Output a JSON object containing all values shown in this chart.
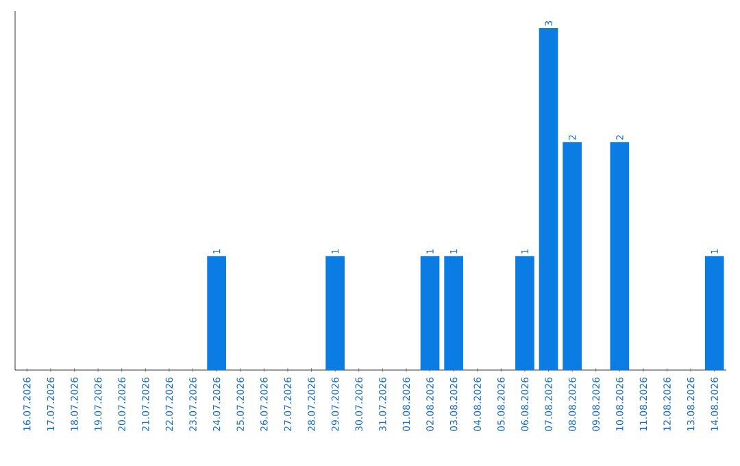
{
  "chart_data": {
    "type": "bar",
    "color": "#0a7ce3",
    "categories": [
      "16.07.2026",
      "17.07.2026",
      "18.07.2026",
      "19.07.2026",
      "20.07.2026",
      "21.07.2026",
      "22.07.2026",
      "23.07.2026",
      "24.07.2026",
      "25.07.2026",
      "26.07.2026",
      "27.07.2026",
      "28.07.2026",
      "29.07.2026",
      "30.07.2026",
      "31.07.2026",
      "01.08.2026",
      "02.08.2026",
      "03.08.2026",
      "04.08.2026",
      "05.08.2026",
      "06.08.2026",
      "07.08.2026",
      "08.08.2026",
      "09.08.2026",
      "10.08.2026",
      "11.08.2026",
      "12.08.2026",
      "13.08.2026",
      "14.08.2026"
    ],
    "values": [
      0,
      0,
      0,
      0,
      0,
      0,
      0,
      0,
      1,
      0,
      0,
      0,
      0,
      1,
      0,
      0,
      0,
      1,
      1,
      0,
      0,
      1,
      3,
      2,
      0,
      2,
      0,
      0,
      0,
      1
    ],
    "value_labels": [
      null,
      null,
      null,
      null,
      null,
      null,
      null,
      null,
      "1",
      null,
      null,
      null,
      null,
      "1",
      null,
      null,
      null,
      "1",
      "1",
      null,
      null,
      "1",
      "3",
      "2",
      null,
      "2",
      null,
      null,
      null,
      "1"
    ]
  }
}
